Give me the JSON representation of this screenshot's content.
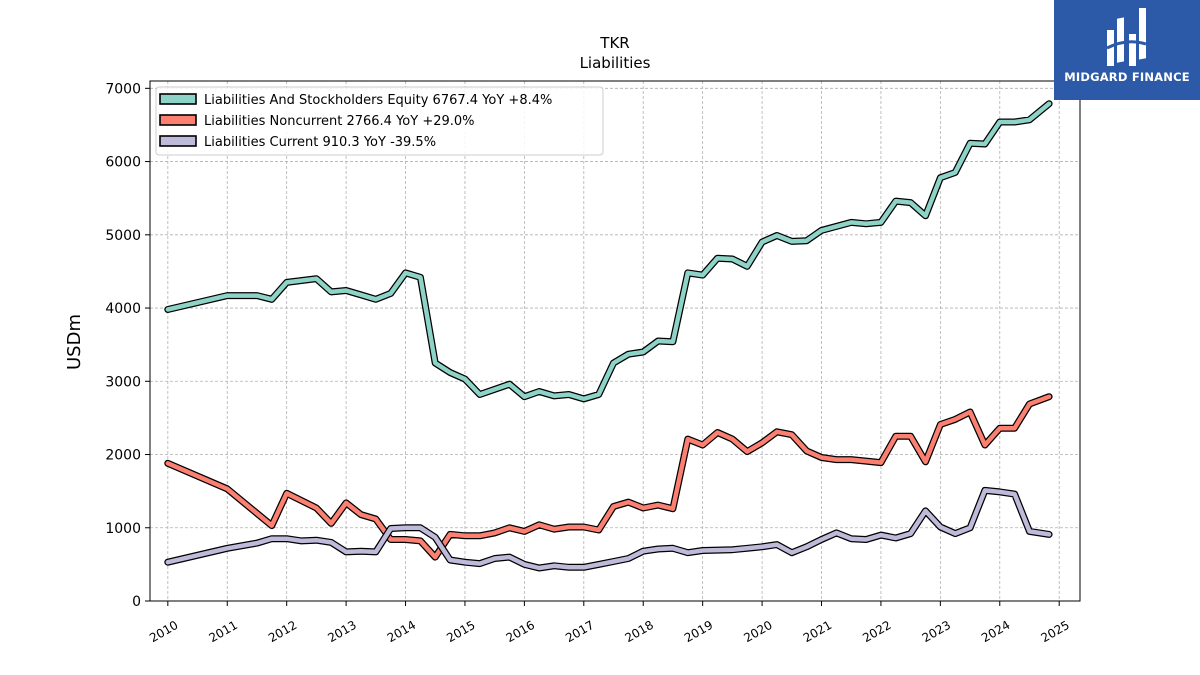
{
  "brand": {
    "name": "MIDGARD FINANCE",
    "bg": "#2d5aa8"
  },
  "chart_data": {
    "type": "line",
    "title": "TKR",
    "subtitle": "Liabilities",
    "ylabel": "USDm",
    "xlabel": "",
    "xlim": [
      2009.7,
      2025.35
    ],
    "ylim": [
      0,
      7100
    ],
    "yticks": [
      0,
      1000,
      2000,
      3000,
      4000,
      5000,
      6000,
      7000
    ],
    "xticks": [
      2010,
      2011,
      2012,
      2013,
      2014,
      2015,
      2016,
      2017,
      2018,
      2019,
      2020,
      2021,
      2022,
      2023,
      2024,
      2025
    ],
    "xtick_labels": [
      "2010",
      "2011",
      "2012",
      "2013",
      "2014",
      "2015",
      "2016",
      "2017",
      "2018",
      "2019",
      "2020",
      "2021",
      "2022",
      "2023",
      "2024",
      "2025"
    ],
    "grid": true,
    "legend_position": "top-left",
    "series": [
      {
        "name": "Liabilities And Stockholders Equity",
        "legend_label": "Liabilities And Stockholders Equity  6767.4 YoY +8.4%",
        "color": "#8dd3c7",
        "points": [
          [
            2010.0,
            3980
          ],
          [
            2011.0,
            4170
          ],
          [
            2011.5,
            4170
          ],
          [
            2011.75,
            4120
          ],
          [
            2012.0,
            4350
          ],
          [
            2012.5,
            4400
          ],
          [
            2012.75,
            4220
          ],
          [
            2013.0,
            4240
          ],
          [
            2013.25,
            4180
          ],
          [
            2013.5,
            4120
          ],
          [
            2013.75,
            4200
          ],
          [
            2014.0,
            4480
          ],
          [
            2014.25,
            4420
          ],
          [
            2014.5,
            3250
          ],
          [
            2014.75,
            3120
          ],
          [
            2015.0,
            3030
          ],
          [
            2015.25,
            2820
          ],
          [
            2015.75,
            2960
          ],
          [
            2016.0,
            2790
          ],
          [
            2016.25,
            2860
          ],
          [
            2016.5,
            2800
          ],
          [
            2016.75,
            2820
          ],
          [
            2017.0,
            2760
          ],
          [
            2017.25,
            2820
          ],
          [
            2017.5,
            3250
          ],
          [
            2017.75,
            3370
          ],
          [
            2018.0,
            3400
          ],
          [
            2018.25,
            3550
          ],
          [
            2018.5,
            3540
          ],
          [
            2018.75,
            4480
          ],
          [
            2019.0,
            4450
          ],
          [
            2019.25,
            4680
          ],
          [
            2019.5,
            4670
          ],
          [
            2019.75,
            4570
          ],
          [
            2020.0,
            4900
          ],
          [
            2020.25,
            4990
          ],
          [
            2020.5,
            4910
          ],
          [
            2020.75,
            4920
          ],
          [
            2021.0,
            5060
          ],
          [
            2021.5,
            5170
          ],
          [
            2021.75,
            5150
          ],
          [
            2022.0,
            5170
          ],
          [
            2022.25,
            5460
          ],
          [
            2022.5,
            5440
          ],
          [
            2022.75,
            5260
          ],
          [
            2023.0,
            5780
          ],
          [
            2023.25,
            5850
          ],
          [
            2023.5,
            6250
          ],
          [
            2023.75,
            6240
          ],
          [
            2024.0,
            6540
          ],
          [
            2024.25,
            6540
          ],
          [
            2024.5,
            6570
          ],
          [
            2024.83,
            6790
          ]
        ]
      },
      {
        "name": "Liabilities Noncurrent",
        "legend_label": "Liabilities Noncurrent  2766.4 YoY +29.0%",
        "color": "#fb8072",
        "points": [
          [
            2010.0,
            1880
          ],
          [
            2011.0,
            1530
          ],
          [
            2011.75,
            1030
          ],
          [
            2012.0,
            1470
          ],
          [
            2012.5,
            1270
          ],
          [
            2012.75,
            1060
          ],
          [
            2013.0,
            1340
          ],
          [
            2013.25,
            1180
          ],
          [
            2013.5,
            1120
          ],
          [
            2013.75,
            840
          ],
          [
            2014.0,
            840
          ],
          [
            2014.25,
            820
          ],
          [
            2014.5,
            600
          ],
          [
            2014.75,
            910
          ],
          [
            2015.0,
            890
          ],
          [
            2015.25,
            890
          ],
          [
            2015.5,
            930
          ],
          [
            2015.75,
            1000
          ],
          [
            2016.0,
            950
          ],
          [
            2016.25,
            1040
          ],
          [
            2016.5,
            980
          ],
          [
            2016.75,
            1010
          ],
          [
            2017.0,
            1010
          ],
          [
            2017.25,
            970
          ],
          [
            2017.5,
            1290
          ],
          [
            2017.75,
            1350
          ],
          [
            2018.0,
            1270
          ],
          [
            2018.25,
            1310
          ],
          [
            2018.5,
            1260
          ],
          [
            2018.75,
            2210
          ],
          [
            2019.0,
            2130
          ],
          [
            2019.25,
            2300
          ],
          [
            2019.5,
            2210
          ],
          [
            2019.75,
            2040
          ],
          [
            2020.0,
            2160
          ],
          [
            2020.25,
            2310
          ],
          [
            2020.5,
            2270
          ],
          [
            2020.75,
            2050
          ],
          [
            2021.0,
            1960
          ],
          [
            2021.25,
            1930
          ],
          [
            2021.5,
            1930
          ],
          [
            2021.75,
            1910
          ],
          [
            2022.0,
            1890
          ],
          [
            2022.25,
            2250
          ],
          [
            2022.5,
            2250
          ],
          [
            2022.75,
            1900
          ],
          [
            2023.0,
            2410
          ],
          [
            2023.25,
            2480
          ],
          [
            2023.5,
            2580
          ],
          [
            2023.75,
            2130
          ],
          [
            2024.0,
            2360
          ],
          [
            2024.25,
            2360
          ],
          [
            2024.5,
            2690
          ],
          [
            2024.83,
            2790
          ]
        ]
      },
      {
        "name": "Liabilities Current",
        "legend_label": "Liabilities Current  910.3 YoY -39.5%",
        "color": "#bebada",
        "points": [
          [
            2010.0,
            530
          ],
          [
            2011.0,
            720
          ],
          [
            2011.5,
            790
          ],
          [
            2011.75,
            850
          ],
          [
            2012.0,
            850
          ],
          [
            2012.25,
            820
          ],
          [
            2012.5,
            830
          ],
          [
            2012.75,
            800
          ],
          [
            2013.0,
            670
          ],
          [
            2013.25,
            680
          ],
          [
            2013.5,
            670
          ],
          [
            2013.75,
            990
          ],
          [
            2014.0,
            1000
          ],
          [
            2014.25,
            1000
          ],
          [
            2014.5,
            870
          ],
          [
            2014.75,
            560
          ],
          [
            2015.0,
            530
          ],
          [
            2015.25,
            510
          ],
          [
            2015.5,
            580
          ],
          [
            2015.75,
            600
          ],
          [
            2016.0,
            500
          ],
          [
            2016.25,
            450
          ],
          [
            2016.5,
            480
          ],
          [
            2016.75,
            460
          ],
          [
            2017.0,
            460
          ],
          [
            2017.25,
            500
          ],
          [
            2017.5,
            540
          ],
          [
            2017.75,
            580
          ],
          [
            2018.0,
            680
          ],
          [
            2018.25,
            710
          ],
          [
            2018.5,
            720
          ],
          [
            2018.75,
            660
          ],
          [
            2019.0,
            690
          ],
          [
            2019.5,
            700
          ],
          [
            2019.75,
            720
          ],
          [
            2020.0,
            740
          ],
          [
            2020.25,
            770
          ],
          [
            2020.5,
            660
          ],
          [
            2020.75,
            740
          ],
          [
            2021.0,
            840
          ],
          [
            2021.25,
            930
          ],
          [
            2021.5,
            850
          ],
          [
            2021.75,
            840
          ],
          [
            2022.0,
            900
          ],
          [
            2022.25,
            860
          ],
          [
            2022.5,
            920
          ],
          [
            2022.75,
            1230
          ],
          [
            2023.0,
            1010
          ],
          [
            2023.25,
            920
          ],
          [
            2023.5,
            1000
          ],
          [
            2023.75,
            1510
          ],
          [
            2024.0,
            1490
          ],
          [
            2024.25,
            1460
          ],
          [
            2024.5,
            950
          ],
          [
            2024.83,
            910
          ]
        ]
      }
    ]
  }
}
